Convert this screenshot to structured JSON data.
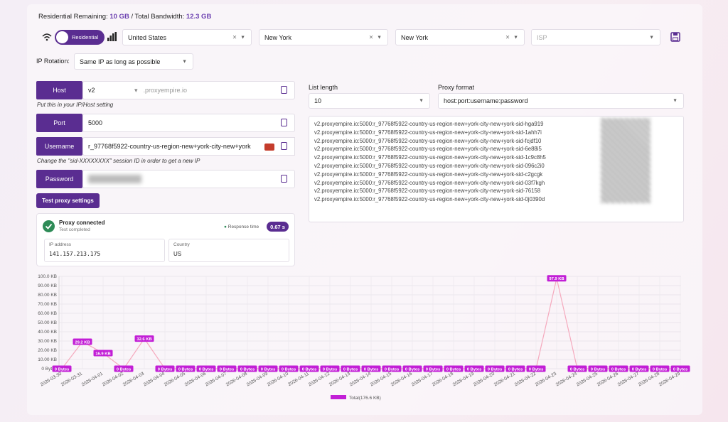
{
  "header": {
    "remaining_label": "Residential Remaining:",
    "remaining": "10 GB",
    "total_label": "/ Total Bandwidth:",
    "total": "12.3 GB"
  },
  "filters": {
    "type": "Residential",
    "country": "United States",
    "region": "New York",
    "city": "New York",
    "isp": "ISP"
  },
  "rotation": {
    "label": "IP Rotation:",
    "value": "Same IP as long as possible"
  },
  "host": {
    "label": "Host",
    "version": "v2",
    "value": ".proxyempire.io",
    "hint": "Put this in your IP/Host setting"
  },
  "port": {
    "label": "Port",
    "value": "5000"
  },
  "username": {
    "label": "Username",
    "value": "r_97768f5922-country-us-region-new+york-city-new+york",
    "hint": "Change the \"sid-XXXXXXXX\" session ID in order to get a new IP"
  },
  "password": {
    "label": "Password"
  },
  "test_button": "Test proxy settings",
  "status": {
    "title": "Proxy connected",
    "subtitle": "Test completed",
    "response_label": "Response time",
    "response": "0.67 s",
    "ip_label": "IP address",
    "ip": "141.157.213.175",
    "country_label": "Country",
    "country": "US"
  },
  "list": {
    "length_label": "List length",
    "length": "10",
    "format_label": "Proxy format",
    "format": "host:port:username:password",
    "lines": [
      "v2.proxyempire.io:5000:r_97768f5922-country-us-region-new+york-city-new+york-sid-hga919",
      "v2.proxyempire.io:5000:r_97768f5922-country-us-region-new+york-city-new+york-sid-1ahh7i",
      "v2.proxyempire.io:5000:r_97768f5922-country-us-region-new+york-city-new+york-sid-fcjdf10",
      "v2.proxyempire.io:5000:r_97768f5922-country-us-region-new+york-city-new+york-sid-6e88i5",
      "v2.proxyempire.io:5000:r_97768f5922-country-us-region-new+york-city-new+york-sid-1c9c8h5",
      "v2.proxyempire.io:5000:r_97768f5922-country-us-region-new+york-city-new+york-sid-096c2i0",
      "v2.proxyempire.io:5000:r_97768f5922-country-us-region-new+york-city-new+york-sid-c2gcgk",
      "v2.proxyempire.io:5000:r_97768f5922-country-us-region-new+york-city-new+york-sid-03f7kgh",
      "v2.proxyempire.io:5000:r_97768f5922-country-us-region-new+york-city-new+york-sid-76158",
      "v2.proxyempire.io:5000:r_97768f5922-country-us-region-new+york-city-new+york-sid-0j0390d"
    ]
  },
  "chart_data": {
    "type": "line",
    "categories": [
      "2026-03-30",
      "2026-03-31",
      "2026-04-01",
      "2026-04-02",
      "2026-04-03",
      "2026-04-04",
      "2026-04-05",
      "2026-04-06",
      "2026-04-07",
      "2026-04-08",
      "2026-04-09",
      "2026-04-10",
      "2026-04-11",
      "2026-04-12",
      "2026-04-13",
      "2026-04-14",
      "2026-04-15",
      "2026-04-16",
      "2026-04-17",
      "2026-04-18",
      "2026-04-19",
      "2026-04-20",
      "2026-04-21",
      "2026-04-22",
      "2026-04-23",
      "2026-04-24",
      "2026-04-25",
      "2026-04-26",
      "2026-04-27",
      "2026-04-28",
      "2026-04-29"
    ],
    "series": [
      {
        "name": "Total(176.6 KB)",
        "color": "#f5a9bd",
        "label_color": "#c21fd6",
        "values": [
          0,
          29.2,
          16.9,
          0,
          32.6,
          0,
          0,
          0,
          0,
          0,
          0,
          0,
          0,
          0,
          0,
          0,
          0,
          0,
          0,
          0,
          0,
          0,
          0,
          0,
          97.9,
          0,
          0,
          0,
          0,
          0,
          0
        ],
        "value_labels": [
          "0 Bytes",
          "29.2 KB",
          "16.9 KB",
          "0 Bytes",
          "32.6 KB",
          "0 Bytes",
          "0 Bytes",
          "0 Bytes",
          "0 Bytes",
          "0 Bytes",
          "0 Bytes",
          "0 Bytes",
          "0 Bytes",
          "0 Bytes",
          "0 Bytes",
          "0 Bytes",
          "0 Bytes",
          "0 Bytes",
          "0 Bytes",
          "0 Bytes",
          "0 Bytes",
          "0 Bytes",
          "0 Bytes",
          "0 Bytes",
          "97.9 KB",
          "0 Bytes",
          "0 Bytes",
          "0 Bytes",
          "0 Bytes",
          "0 Bytes",
          "0 Bytes"
        ]
      }
    ],
    "ylim": [
      0,
      100
    ],
    "yticks": [
      {
        "value": 0,
        "label": "0 Bytes"
      },
      {
        "value": 10,
        "label": "10.00 KB"
      },
      {
        "value": 20,
        "label": "20.00 KB"
      },
      {
        "value": 30,
        "label": "30.00 KB"
      },
      {
        "value": 40,
        "label": "40.00 KB"
      },
      {
        "value": 50,
        "label": "50.00 KB"
      },
      {
        "value": 60,
        "label": "60.00 KB"
      },
      {
        "value": 70,
        "label": "70.00 KB"
      },
      {
        "value": 80,
        "label": "80.00 KB"
      },
      {
        "value": 90,
        "label": "90.00 KB"
      },
      {
        "value": 100,
        "label": "100.0 KB"
      }
    ],
    "grid": true
  }
}
